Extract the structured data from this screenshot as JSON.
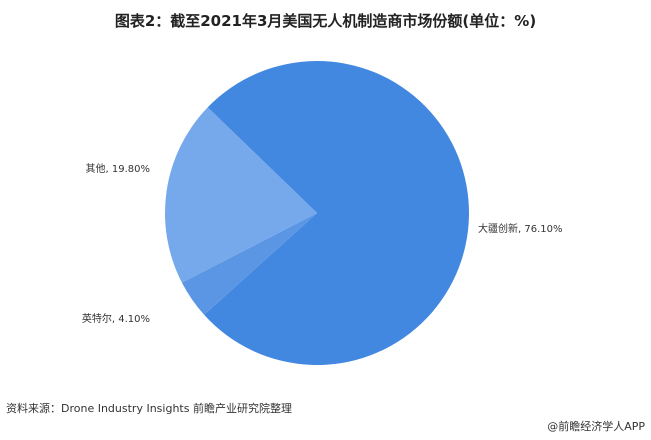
{
  "chart_data": {
    "type": "pie",
    "title": "图表2：截至2021年3月美国无人机制造商市场份额(单位：%)",
    "slices": [
      {
        "label": "大疆创新",
        "value": 76.1,
        "display": "大疆创新, 76.10%",
        "color": "#4388e0"
      },
      {
        "label": "英特尔",
        "value": 4.1,
        "display": "英特尔, 4.10%",
        "color": "#5b96e4"
      },
      {
        "label": "其他",
        "value": 19.8,
        "display": "其他, 19.80%",
        "color": "#76a8ec"
      }
    ]
  },
  "source": "资料来源：Drone Industry Insights 前瞻产业研究院整理",
  "credit": "@前瞻经济学人APP"
}
